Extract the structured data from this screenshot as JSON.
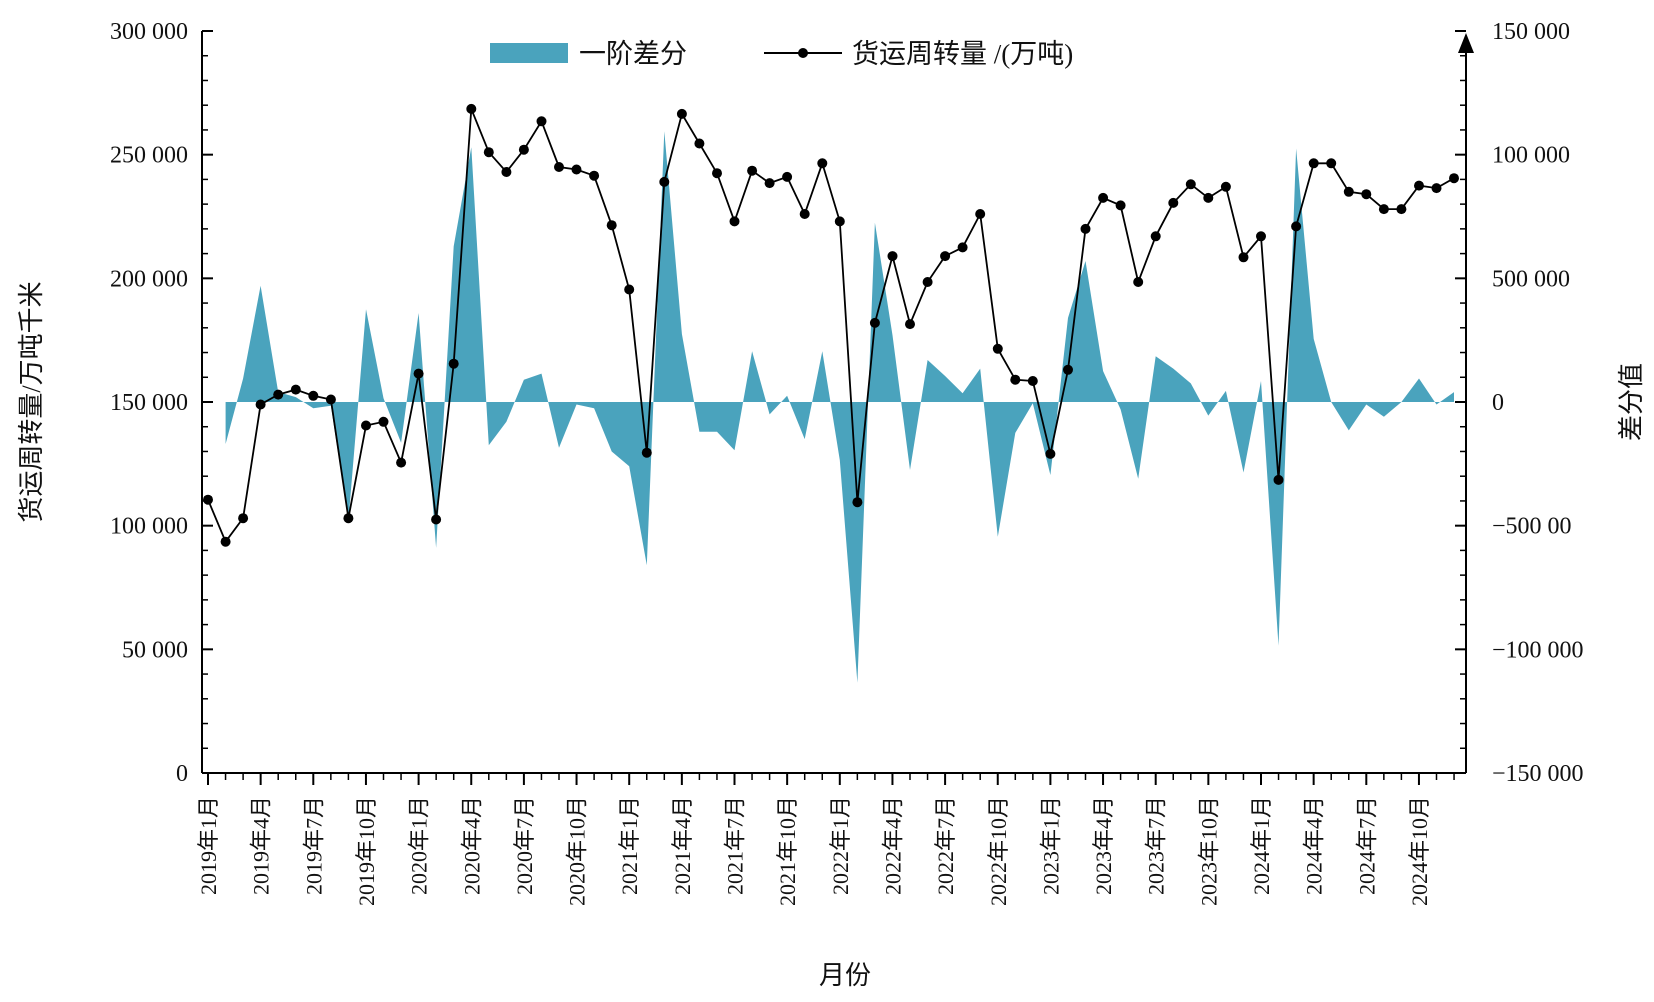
{
  "chart_data": {
    "type": "line+area",
    "xlabel": "月份",
    "ylabel_left": "货运周转量/万吨千米",
    "ylabel_right": "差分值",
    "left_ylim": [
      0,
      300000
    ],
    "right_ylim": [
      -150000,
      150000
    ],
    "left_ticks": [
      "0",
      "50 000",
      "100 000",
      "150 000",
      "200 000",
      "250 000",
      "300 000"
    ],
    "right_ticks": [
      "−150 000",
      "−100 000",
      "−500 00",
      "0",
      "500 000",
      "100 000",
      "150 000"
    ],
    "x_tick_labels": [
      "2019年1月",
      "2019年4月",
      "2019年7月",
      "2019年10月",
      "2020年1月",
      "2020年4月",
      "2020年7月",
      "2020年10月",
      "2021年1月",
      "2021年4月",
      "2021年7月",
      "2021年10月",
      "2022年1月",
      "2022年4月",
      "2022年7月",
      "2022年10月",
      "2023年1月",
      "2023年4月",
      "2023年7月",
      "2023年10月",
      "2024年1月",
      "2024年4月",
      "2024年7月",
      "2024年10月"
    ],
    "legend": [
      "一阶差分",
      "货运周转量 /(万吨)"
    ],
    "series": [
      {
        "name": "货运周转量 /(万吨)",
        "axis": "left",
        "values": [
          110500,
          93500,
          103000,
          149000,
          153000,
          155000,
          152500,
          151000,
          103000,
          140500,
          142000,
          125500,
          161500,
          102500,
          165500,
          268500,
          251000,
          243000,
          252000,
          263500,
          245000,
          244000,
          241500,
          221500,
          195500,
          129500,
          239000,
          266500,
          254500,
          242500,
          223000,
          243500,
          238500,
          241000,
          226000,
          246500,
          223000,
          109500,
          182000,
          209000,
          181500,
          198500,
          209000,
          212500,
          226000,
          171500,
          159000,
          158500,
          129000,
          163000,
          220000,
          232500,
          229500,
          198500,
          217000,
          230500,
          238000,
          232500,
          237000,
          208500,
          217000,
          118500,
          221000,
          246500,
          246500,
          235000,
          234000,
          228000,
          228000,
          237500,
          236500,
          240500
        ]
      },
      {
        "name": "一阶差分",
        "axis": "right",
        "values": [
          -17000,
          9500,
          47000,
          4000,
          2000,
          -2500,
          -1500,
          -48000,
          37500,
          1500,
          -16500,
          36000,
          -59000,
          63000,
          103000,
          -17500,
          -8000,
          9000,
          11500,
          -18500,
          -1000,
          -2500,
          -20000,
          -26000,
          -66000,
          109500,
          27500,
          -12000,
          -12000,
          -19500,
          20500,
          -5000,
          2500,
          -15000,
          20500,
          -23500,
          -113500,
          72500,
          27000,
          -27500,
          17000,
          10500,
          3500,
          13500,
          -54500,
          -12500,
          -500,
          -29500,
          34000,
          57000,
          12500,
          -3000,
          -31000,
          18500,
          13500,
          7500,
          -5500,
          4500,
          -28500,
          8500,
          -98500,
          102500,
          25500,
          0,
          -11500,
          -1000,
          -6000,
          0,
          9500,
          -1000,
          4000
        ]
      }
    ]
  }
}
